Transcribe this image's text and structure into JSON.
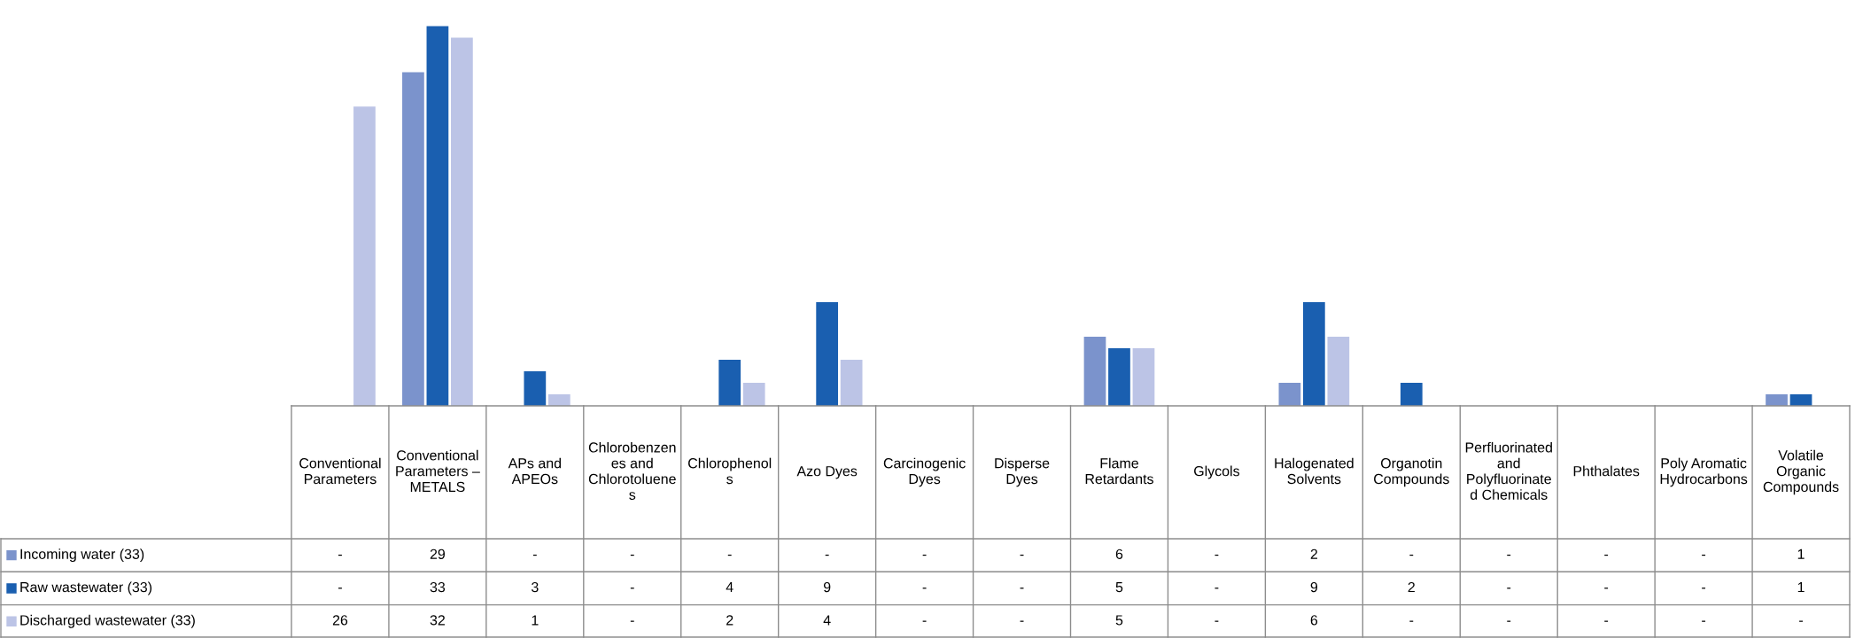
{
  "chart_data": {
    "type": "bar",
    "categories": [
      "Conventional Parameters",
      "Conventional Parameters – METALS",
      "APs and APEOs",
      "Chlorobenzenes and Chlorotoluenes",
      "Chlorophenols",
      "Azo Dyes",
      "Carcinogenic Dyes",
      "Disperse Dyes",
      "Flame Retardants",
      "Glycols",
      "Halogenated Solvents",
      "Organotin Compounds",
      "Perfluorinated and Polyfluorinated Chemicals",
      "Phthalates",
      "Poly Aromatic Hydrocarbons",
      "Volatile Organic Compounds"
    ],
    "series": [
      {
        "name": "Incoming water (33)",
        "color": "#7b93cc",
        "values": [
          null,
          29,
          null,
          null,
          null,
          null,
          null,
          null,
          6,
          null,
          2,
          null,
          null,
          null,
          null,
          1
        ],
        "value_labels": [
          "-",
          "29",
          "-",
          "-",
          "-",
          "-",
          "-",
          "-",
          "6",
          "-",
          "2",
          "-",
          "-",
          "-",
          "-",
          "1"
        ]
      },
      {
        "name": "Raw wastewater (33)",
        "color": "#1a5fb0",
        "values": [
          null,
          33,
          3,
          null,
          4,
          9,
          null,
          null,
          5,
          null,
          9,
          2,
          null,
          null,
          null,
          1
        ],
        "value_labels": [
          "-",
          "33",
          "3",
          "-",
          "4",
          "9",
          "-",
          "-",
          "5",
          "-",
          "9",
          "2",
          "-",
          "-",
          "-",
          "1"
        ]
      },
      {
        "name": "Discharged wastewater (33)",
        "color": "#bcc4e6",
        "values": [
          26,
          32,
          1,
          null,
          2,
          4,
          null,
          null,
          5,
          null,
          6,
          null,
          null,
          null,
          null,
          null
        ],
        "value_labels": [
          "26",
          "32",
          "1",
          "-",
          "2",
          "4",
          "-",
          "-",
          "5",
          "-",
          "6",
          "-",
          "-",
          "-",
          "-",
          "-"
        ]
      }
    ],
    "legend": "left"
  }
}
